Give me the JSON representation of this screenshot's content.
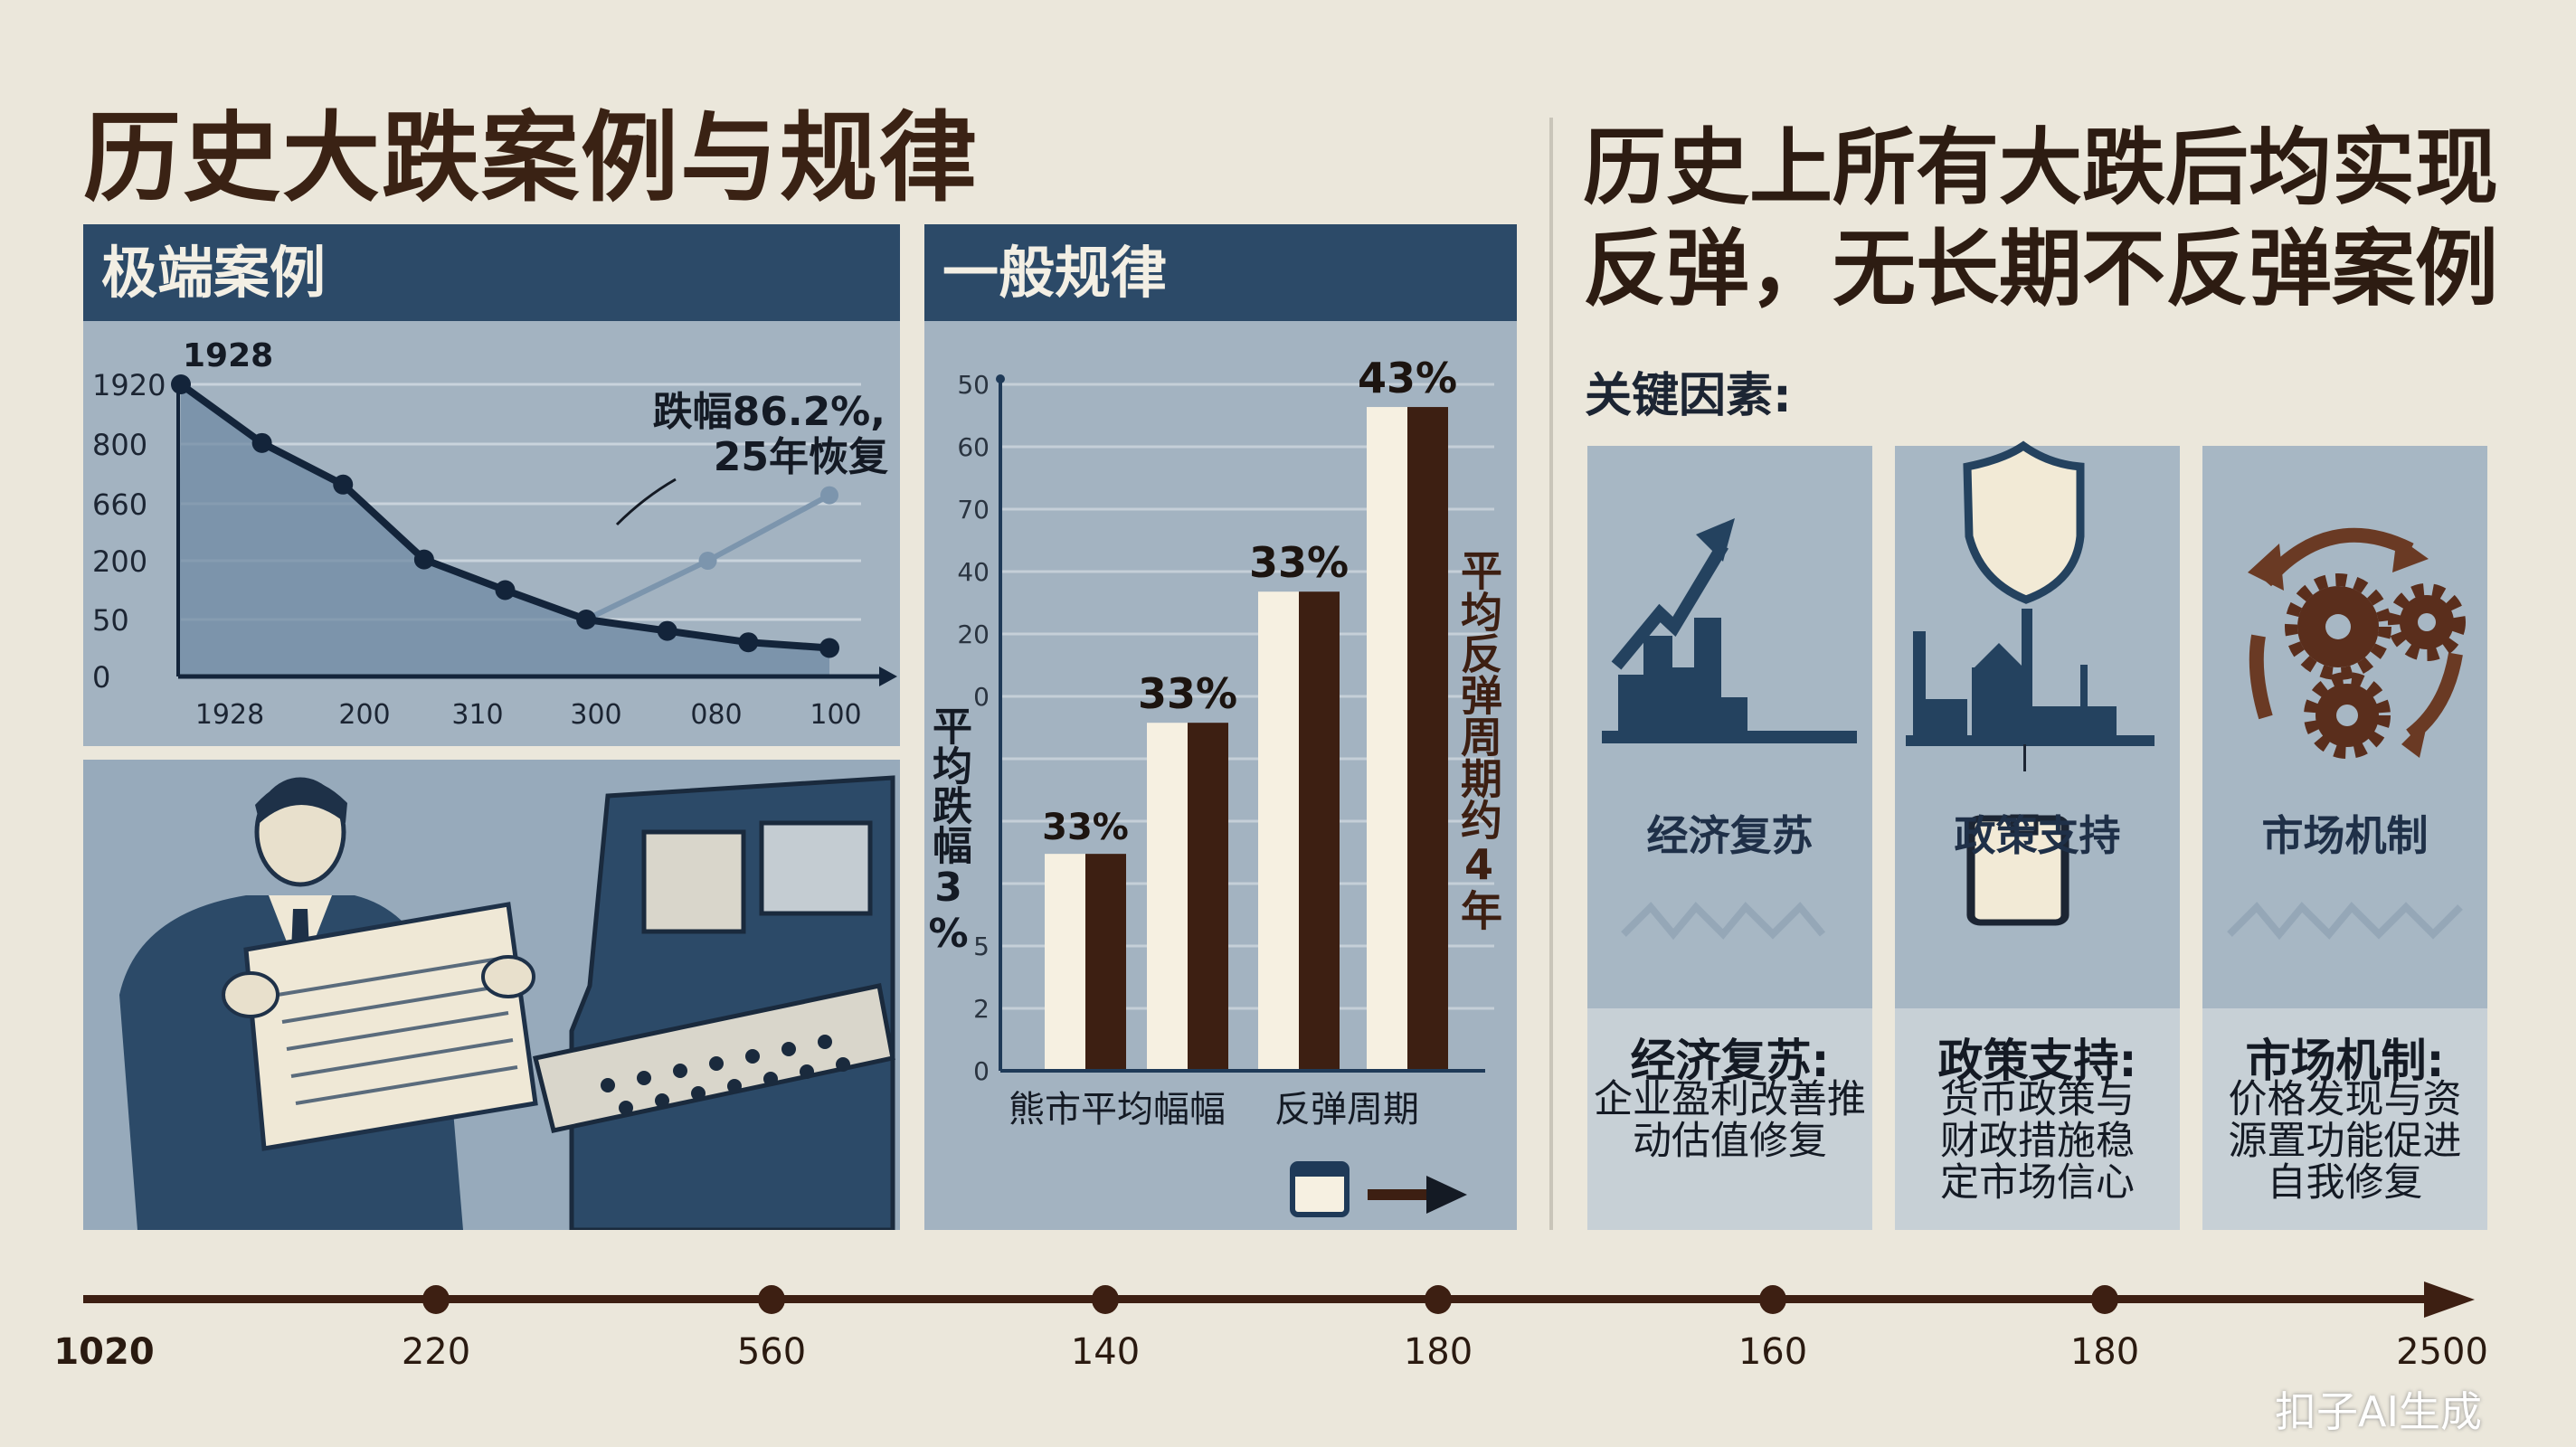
{
  "title": "历史大跌案例与规律",
  "left_panel": {
    "header": "极端案例"
  },
  "middle_panel": {
    "header": "一般规律"
  },
  "right": {
    "title_line1": "历史上所有大跌后均实现",
    "title_line2": "反弹，无长期不反弹案例",
    "key_factors_label": "关键因素:",
    "cards": [
      {
        "icon": "rising-chart-icon",
        "label": "经济复苏",
        "heading": "经济复苏:",
        "desc": [
          "企业盈利改善推",
          "动估值修复"
        ]
      },
      {
        "icon": "shield-factory-briefcase-icon",
        "label": "政策支持",
        "heading": "政策支持:",
        "desc": [
          "货币政策与",
          "财政措施稳",
          "定市场信心"
        ]
      },
      {
        "icon": "gears-cycle-icon",
        "label": "市场机制",
        "heading": "市场机制:",
        "desc": [
          "价格发现与资",
          "源置功能促进",
          "自我修复"
        ]
      }
    ]
  },
  "timeline": {
    "labels": [
      "1020",
      "220",
      "560",
      "140",
      "180",
      "160",
      "180",
      "2500"
    ]
  },
  "watermark": "扣子AI生成",
  "colors": {
    "navy": "#2c4a68",
    "brown": "#3d1f12",
    "cream": "#f6f0e1",
    "paper": "#ebe7db",
    "panel": "#a3b3c1"
  },
  "chart_data": [
    {
      "type": "line",
      "year_label": "1928",
      "annotation": [
        "跌幅86.2%,",
        "25年恢复"
      ],
      "y_ticks": [
        "0",
        "50",
        "200",
        "660",
        "800",
        "1920"
      ],
      "x_ticks": [
        "1928",
        "200",
        "310",
        "300",
        "080",
        "100"
      ],
      "series": [
        {
          "values": [
            1920,
            820,
            705,
            210,
            125,
            50,
            40,
            30,
            25
          ]
        },
        {
          "values": [
            50,
            200,
            680
          ]
        }
      ],
      "area_fill": true,
      "grid": true
    },
    {
      "type": "bar",
      "y_ticks": [
        "50",
        "60",
        "70",
        "40",
        "20",
        "0",
        "",
        "",
        "",
        "5",
        "2",
        "0"
      ],
      "categories": [
        "熊市平均幅幅",
        "反弹周期"
      ],
      "bar_labels": [
        "33%",
        "33%",
        "33%",
        "43%"
      ],
      "bar_levels": [
        0.316,
        0.507,
        0.698,
        0.967
      ],
      "left_label": "平均跌幅3%",
      "right_label": "平均反弹周期约4年",
      "grid": true
    }
  ]
}
